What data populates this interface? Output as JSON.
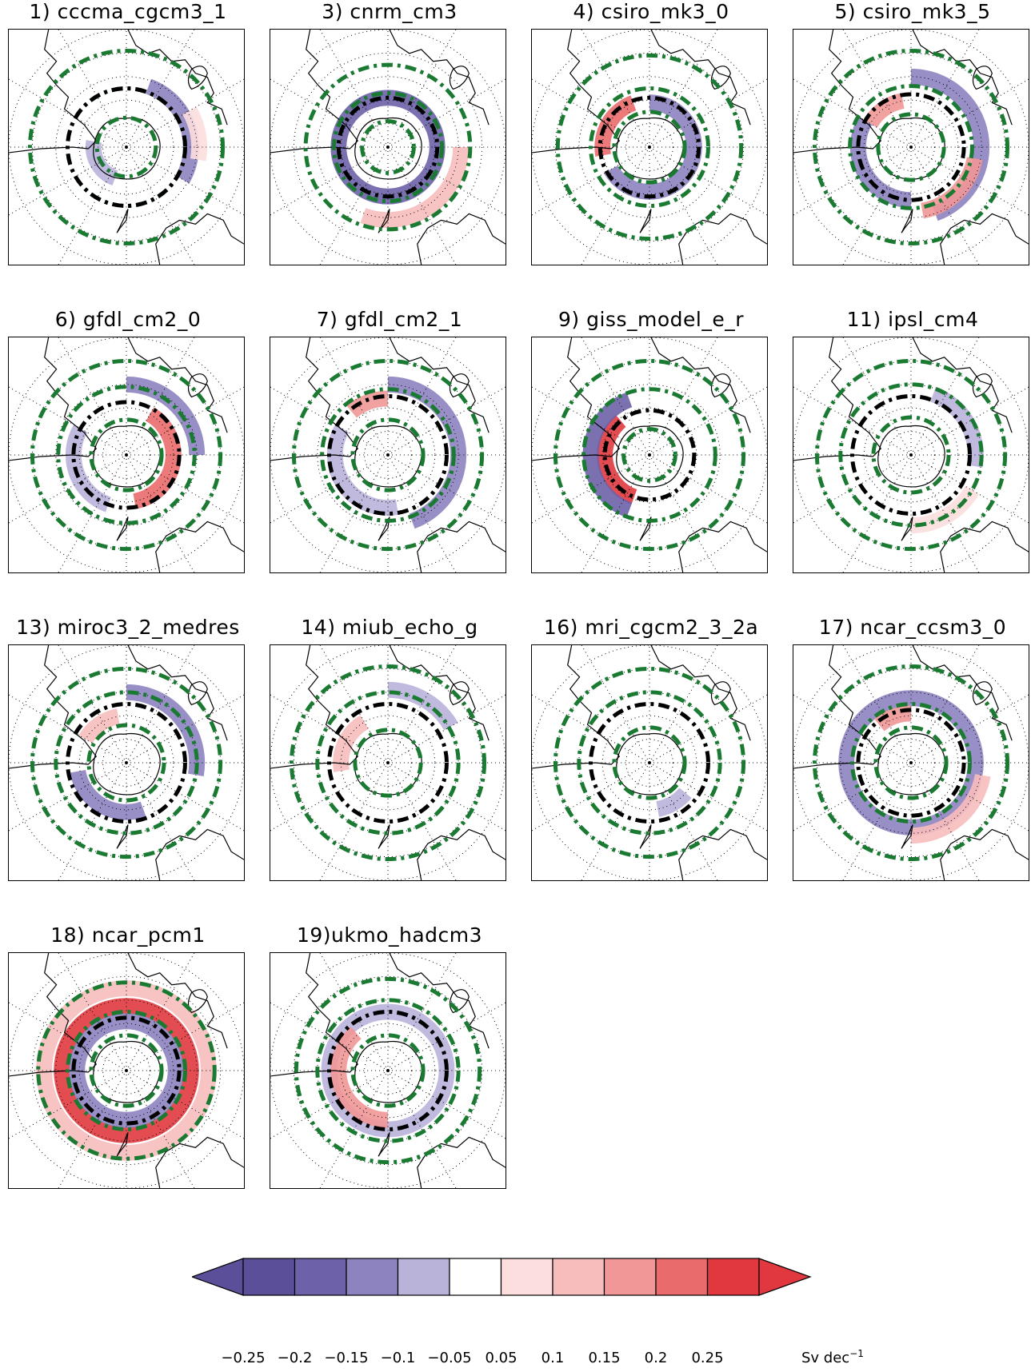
{
  "panels": [
    {
      "title": "1) cccma_cgcm3_1",
      "black_radius": 0.5,
      "green_radii": [
        0.25,
        0.5,
        0.82
      ],
      "field": [
        {
          "a": 20,
          "b": 120,
          "r": 0.55,
          "v": -0.15
        },
        {
          "a": 200,
          "b": 280,
          "r": 0.28,
          "v": -0.1
        },
        {
          "a": 60,
          "b": 100,
          "r": 0.62,
          "v": 0.05
        }
      ]
    },
    {
      "title": "3) cnrm_cm3",
      "black_radius": 0.42,
      "green_radii": [
        0.22,
        0.46,
        0.7
      ],
      "field": [
        {
          "a": 0,
          "b": 360,
          "r": 0.42,
          "v": -0.2
        },
        {
          "a": 90,
          "b": 200,
          "r": 0.62,
          "v": 0.1
        }
      ]
    },
    {
      "title": "4) csiro_mk3_0",
      "black_radius": 0.42,
      "green_radii": [
        0.3,
        0.5,
        0.78
      ],
      "field": [
        {
          "a": 0,
          "b": 240,
          "r": 0.38,
          "v": -0.15
        },
        {
          "a": 260,
          "b": 340,
          "r": 0.4,
          "v": 0.2
        }
      ]
    },
    {
      "title": "5) csiro_mk3_5",
      "black_radius": 0.45,
      "green_radii": [
        0.28,
        0.52,
        0.82
      ],
      "field": [
        {
          "a": 0,
          "b": 160,
          "r": 0.6,
          "v": -0.15
        },
        {
          "a": 180,
          "b": 300,
          "r": 0.45,
          "v": -0.15
        },
        {
          "a": 100,
          "b": 170,
          "r": 0.55,
          "v": 0.15
        },
        {
          "a": 300,
          "b": 350,
          "r": 0.4,
          "v": 0.15
        }
      ]
    },
    {
      "title": "6) gfdl_cm2_0",
      "black_radius": 0.45,
      "green_radii": [
        0.3,
        0.58,
        0.8
      ],
      "field": [
        {
          "a": 30,
          "b": 170,
          "r": 0.4,
          "v": 0.2
        },
        {
          "a": 0,
          "b": 90,
          "r": 0.6,
          "v": -0.15
        },
        {
          "a": 200,
          "b": 300,
          "r": 0.45,
          "v": -0.1
        }
      ]
    },
    {
      "title": "7) gfdl_cm2_1",
      "black_radius": 0.5,
      "green_radii": [
        0.3,
        0.56,
        0.8
      ],
      "field": [
        {
          "a": 0,
          "b": 160,
          "r": 0.6,
          "v": -0.15
        },
        {
          "a": 170,
          "b": 300,
          "r": 0.45,
          "v": -0.1
        },
        {
          "a": 320,
          "b": 360,
          "r": 0.48,
          "v": 0.15
        }
      ]
    },
    {
      "title": "9) giss_model_e_r",
      "black_radius": 0.38,
      "green_radii": [
        0.22,
        0.56,
        0.8
      ],
      "field": [
        {
          "a": 200,
          "b": 320,
          "r": 0.38,
          "v": 0.25
        },
        {
          "a": 200,
          "b": 340,
          "r": 0.5,
          "v": -0.2
        }
      ]
    },
    {
      "title": "11) ipsl_cm4",
      "black_radius": 0.5,
      "green_radii": [
        0.32,
        0.6,
        0.8
      ],
      "field": [
        {
          "a": 20,
          "b": 100,
          "r": 0.55,
          "v": -0.1
        },
        {
          "a": 120,
          "b": 180,
          "r": 0.6,
          "v": 0.05
        }
      ]
    },
    {
      "title": "13) miroc3_2_medres",
      "black_radius": 0.5,
      "green_radii": [
        0.32,
        0.6,
        0.8
      ],
      "field": [
        {
          "a": 0,
          "b": 100,
          "r": 0.6,
          "v": -0.15
        },
        {
          "a": 160,
          "b": 260,
          "r": 0.42,
          "v": -0.15
        },
        {
          "a": 300,
          "b": 350,
          "r": 0.4,
          "v": 0.1
        }
      ]
    },
    {
      "title": "14) miub_echo_g",
      "black_radius": 0.5,
      "green_radii": [
        0.28,
        0.6,
        0.82
      ],
      "field": [
        {
          "a": 0,
          "b": 60,
          "r": 0.62,
          "v": -0.1
        },
        {
          "a": 260,
          "b": 330,
          "r": 0.4,
          "v": 0.1
        }
      ]
    },
    {
      "title": "16) mri_cgcm2_3_2a",
      "black_radius": 0.5,
      "green_radii": [
        0.3,
        0.6,
        0.8
      ],
      "field": [
        {
          "a": 130,
          "b": 170,
          "r": 0.4,
          "v": -0.1
        }
      ]
    },
    {
      "title": "17) ncar_ccsm3_0",
      "black_radius": 0.45,
      "green_radii": [
        0.3,
        0.5,
        0.82
      ],
      "field": [
        {
          "a": 0,
          "b": 360,
          "r": 0.55,
          "v": -0.15
        },
        {
          "a": 100,
          "b": 180,
          "r": 0.62,
          "v": 0.1
        },
        {
          "a": 320,
          "b": 360,
          "r": 0.42,
          "v": 0.15
        }
      ]
    },
    {
      "title": "18) ncar_pcm1",
      "black_radius": 0.45,
      "green_radii": [
        0.3,
        0.5,
        0.75
      ],
      "field": [
        {
          "a": 0,
          "b": 360,
          "r": 0.55,
          "v": 0.25
        },
        {
          "a": 0,
          "b": 360,
          "r": 0.42,
          "v": -0.15
        },
        {
          "a": 0,
          "b": 360,
          "r": 0.7,
          "v": 0.1
        }
      ]
    },
    {
      "title": "19)ukmo_hadcm3",
      "black_radius": 0.5,
      "green_radii": [
        0.3,
        0.6,
        0.78
      ],
      "field": [
        {
          "a": 0,
          "b": 360,
          "r": 0.5,
          "v": -0.1
        },
        {
          "a": 180,
          "b": 320,
          "r": 0.42,
          "v": 0.15
        }
      ]
    }
  ],
  "colorbar": {
    "colors": [
      "#5b4f9a",
      "#5b4f9a",
      "#6d62a9",
      "#8c83bf",
      "#b9b3da",
      "#ffffff",
      "#fcdede",
      "#f7bcbc",
      "#f19797",
      "#ea6b6b",
      "#e0383e",
      "#e0383e"
    ],
    "levels": [
      "−0.25",
      "−0.2",
      "−0.15",
      "−0.1",
      "−0.05",
      "0.05",
      "0.1",
      "0.15",
      "0.2",
      "0.25"
    ],
    "units": "Sv dec",
    "units_exponent": "−1",
    "min": -0.25,
    "max": 0.25
  },
  "colors": {
    "black_contour": "#000000",
    "green_contour": "#1a7a32",
    "coastline": "#000000",
    "grid": "#000000"
  }
}
